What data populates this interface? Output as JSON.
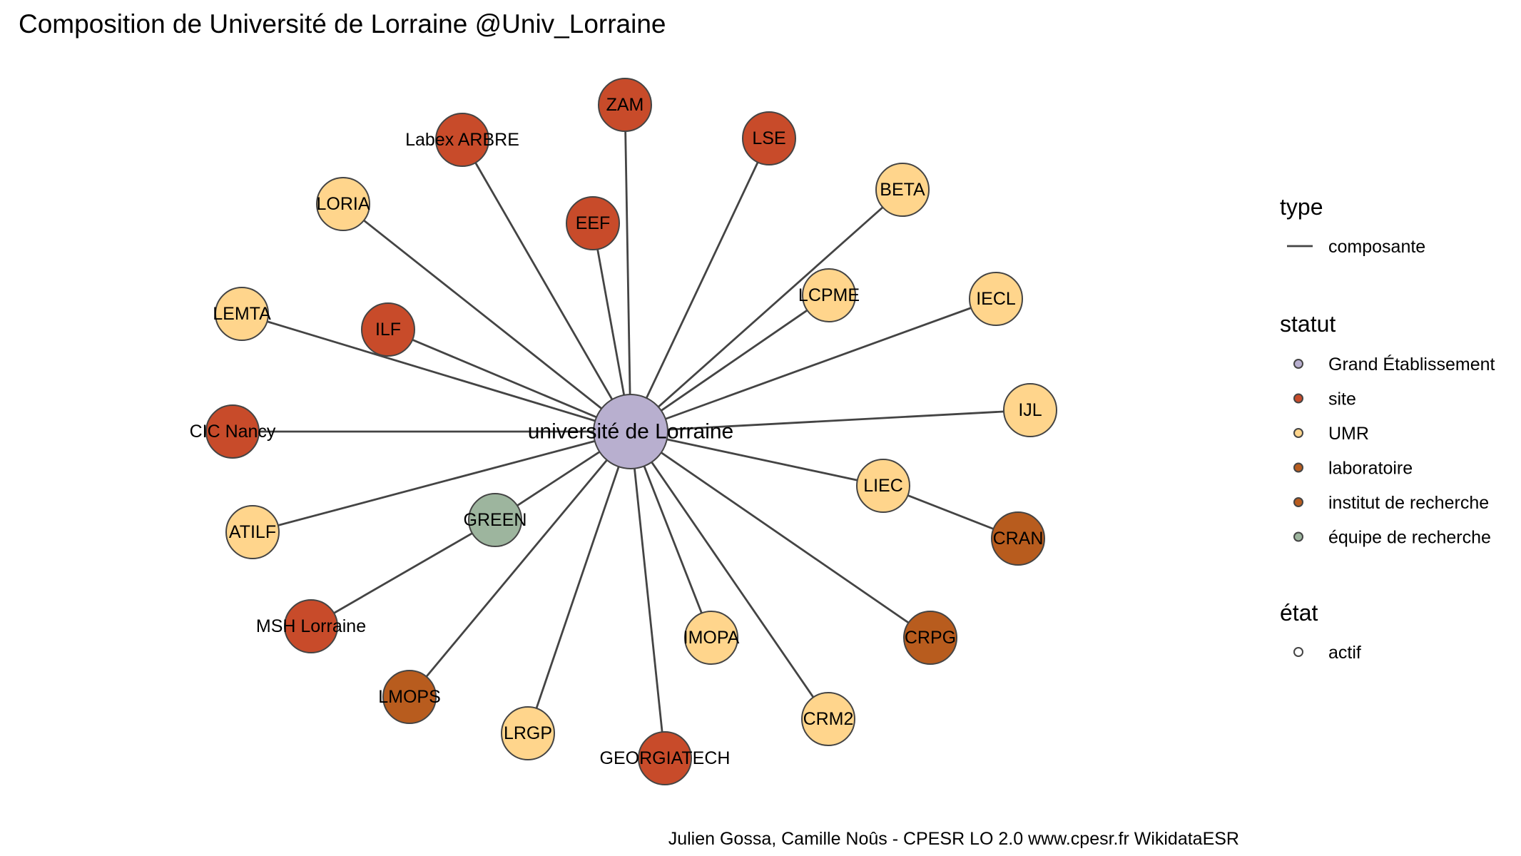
{
  "title": "Composition de Université de Lorraine @Univ_Lorraine",
  "caption": "Julien Gossa, Camille Noûs - CPESR LO 2.0 www.cpesr.fr WikidataESR",
  "colors": {
    "Grand Établissement": "#B8AFCF",
    "site": "#C84B2A",
    "UMR": "#FFD58C",
    "laboratoire": "#B85C1E",
    "institut de recherche": "#B85C1E",
    "équipe de recherche": "#9DB59E",
    "edge": "#444444"
  },
  "legend": {
    "type": {
      "title": "type",
      "items": [
        {
          "label": "composante"
        }
      ]
    },
    "statut": {
      "title": "statut",
      "items": [
        {
          "label": "Grand Établissement",
          "key": "Grand Établissement"
        },
        {
          "label": "site",
          "key": "site"
        },
        {
          "label": "UMR",
          "key": "UMR"
        },
        {
          "label": "laboratoire",
          "key": "laboratoire"
        },
        {
          "label": "institut de recherche",
          "key": "institut de recherche"
        },
        {
          "label": "équipe de recherche",
          "key": "équipe de recherche"
        }
      ]
    },
    "etat": {
      "title": "état",
      "items": [
        {
          "label": "actif"
        }
      ]
    }
  },
  "nodes": [
    {
      "id": "UL",
      "label": "université de Lorraine",
      "statut": "Grand Établissement",
      "center": true
    },
    {
      "id": "ZAM",
      "label": "ZAM",
      "statut": "site"
    },
    {
      "id": "LSE",
      "label": "LSE",
      "statut": "site"
    },
    {
      "id": "ARBRE",
      "label": "Labex ARBRE",
      "statut": "site"
    },
    {
      "id": "BETA",
      "label": "BETA",
      "statut": "UMR"
    },
    {
      "id": "LORIA",
      "label": "LORIA",
      "statut": "UMR"
    },
    {
      "id": "EEF",
      "label": "EEF",
      "statut": "site"
    },
    {
      "id": "LCPME",
      "label": "LCPME",
      "statut": "UMR"
    },
    {
      "id": "IECL",
      "label": "IECL",
      "statut": "UMR"
    },
    {
      "id": "LEMTA",
      "label": "LEMTA",
      "statut": "UMR"
    },
    {
      "id": "ILF",
      "label": "ILF",
      "statut": "site"
    },
    {
      "id": "CIC",
      "label": "CIC Nancy",
      "statut": "site"
    },
    {
      "id": "IJL",
      "label": "IJL",
      "statut": "UMR"
    },
    {
      "id": "LIEC",
      "label": "LIEC",
      "statut": "UMR"
    },
    {
      "id": "CRAN",
      "label": "CRAN",
      "statut": "laboratoire"
    },
    {
      "id": "ATILF",
      "label": "ATILF",
      "statut": "UMR"
    },
    {
      "id": "GREEN",
      "label": "GREEN",
      "statut": "équipe de recherche"
    },
    {
      "id": "MSH",
      "label": "MSH Lorraine",
      "statut": "site"
    },
    {
      "id": "CRPG",
      "label": "CRPG",
      "statut": "institut de recherche"
    },
    {
      "id": "IMOPA",
      "label": "IMOPA",
      "statut": "UMR"
    },
    {
      "id": "LMOPS",
      "label": "LMOPS",
      "statut": "laboratoire"
    },
    {
      "id": "CRM2",
      "label": "CRM2",
      "statut": "UMR"
    },
    {
      "id": "LRGP",
      "label": "LRGP",
      "statut": "UMR"
    },
    {
      "id": "GEORGIATECH",
      "label": "GEORGIATECH",
      "statut": "site"
    }
  ],
  "edges": [
    [
      "UL",
      "ZAM"
    ],
    [
      "UL",
      "LSE"
    ],
    [
      "UL",
      "ARBRE"
    ],
    [
      "UL",
      "BETA"
    ],
    [
      "UL",
      "LORIA"
    ],
    [
      "UL",
      "EEF"
    ],
    [
      "UL",
      "LCPME"
    ],
    [
      "UL",
      "IECL"
    ],
    [
      "UL",
      "LEMTA"
    ],
    [
      "UL",
      "ILF"
    ],
    [
      "UL",
      "CIC"
    ],
    [
      "UL",
      "IJL"
    ],
    [
      "UL",
      "LIEC"
    ],
    [
      "LIEC",
      "CRAN"
    ],
    [
      "UL",
      "ATILF"
    ],
    [
      "UL",
      "GREEN"
    ],
    [
      "GREEN",
      "MSH"
    ],
    [
      "UL",
      "CRPG"
    ],
    [
      "UL",
      "IMOPA"
    ],
    [
      "UL",
      "LMOPS"
    ],
    [
      "UL",
      "CRM2"
    ],
    [
      "UL",
      "LRGP"
    ],
    [
      "UL",
      "GEORGIATECH"
    ]
  ]
}
